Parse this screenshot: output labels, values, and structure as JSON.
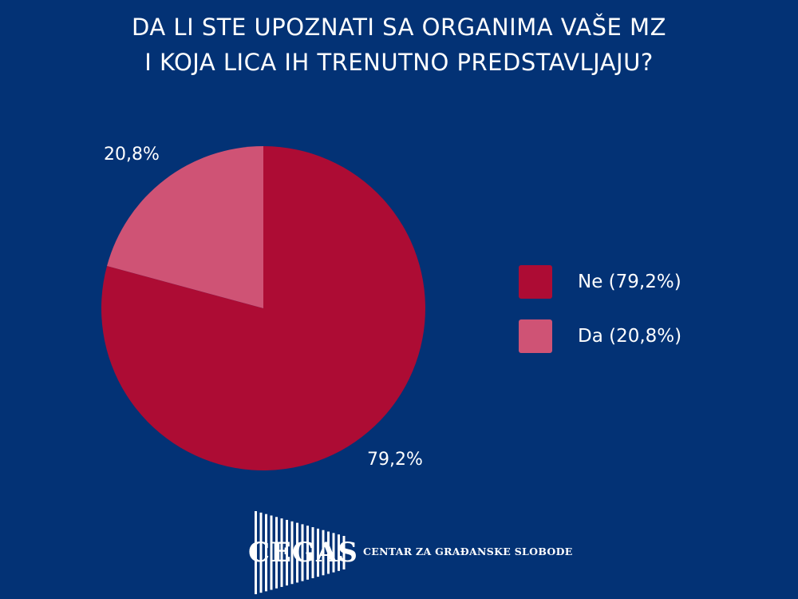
{
  "colors": {
    "background": "#033275",
    "ne": "#ad0c34",
    "da": "#cf5375",
    "text": "#ffffff"
  },
  "chart_data": {
    "type": "pie",
    "title_lines": [
      "DA LI STE UPOZNATI SA ORGANIMA VAŠE MZ",
      "I KOJA LICA IH TRENUTNO PREDSTAVLJAJU?"
    ],
    "slices": [
      {
        "name": "Ne",
        "value": 79.2,
        "label": "79,2%",
        "legend": "Ne (79,2%)",
        "color": "#ad0c34"
      },
      {
        "name": "Da",
        "value": 20.8,
        "label": "20,8%",
        "legend": "Da (20,8%)",
        "color": "#cf5375"
      }
    ],
    "legend_position": "right"
  },
  "logo": {
    "wordmark": "CEGAS",
    "tagline": "CENTAR ZA GRAĐANSKE SLOBODE"
  }
}
